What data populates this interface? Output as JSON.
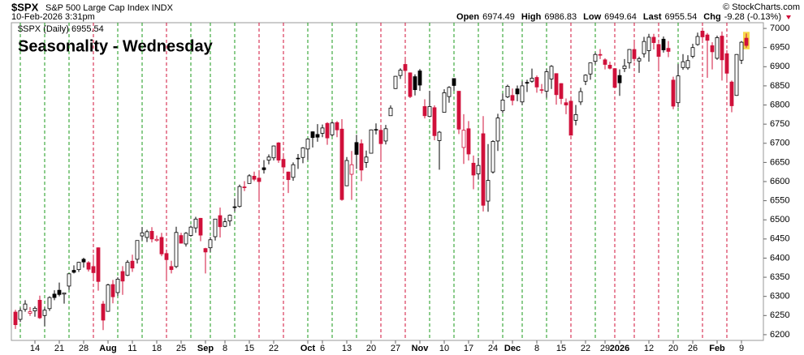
{
  "chart_data": {
    "type": "candlestick",
    "title": "Seasonality - Wednesday",
    "title_color": "#1010e0",
    "symbol": "$SPX",
    "symbol_name": "S&P 500 Large Cap Index INDX",
    "datetime": "10-Feb-2026 3:31pm",
    "quote": [
      {
        "label": "Open",
        "value": "6974.49"
      },
      {
        "label": "High",
        "value": "6986.83"
      },
      {
        "label": "Low",
        "value": "6949.64"
      },
      {
        "label": "Last",
        "value": "6955.54"
      },
      {
        "label": "Chg",
        "value": "-9.28 (-0.13%)"
      }
    ],
    "credit": "© StockCharts.com",
    "legend_text": "$SPX (Daily) 6955.54",
    "up_color": "#000000",
    "down_color": "#d0103a",
    "line_up_color": "#1a9a1a",
    "line_down_color": "#d0103a",
    "last_bar_highlight": "#f7d84a",
    "ylim": [
      6185,
      7015
    ],
    "yticks": [
      6200,
      6250,
      6300,
      6350,
      6400,
      6450,
      6500,
      6550,
      6600,
      6650,
      6700,
      6750,
      6800,
      6850,
      6900,
      6950,
      7000
    ],
    "categories": [
      null,
      null,
      null,
      null,
      "14",
      null,
      null,
      null,
      null,
      "21",
      null,
      null,
      null,
      null,
      "28",
      null,
      null,
      null,
      null,
      "Aug",
      null,
      null,
      null,
      null,
      "11",
      null,
      null,
      null,
      null,
      "18",
      null,
      null,
      null,
      null,
      "25",
      null,
      null,
      null,
      null,
      "Sep",
      null,
      null,
      null,
      "8",
      null,
      null,
      null,
      null,
      "15",
      null,
      null,
      null,
      null,
      "22",
      null,
      null,
      null,
      null,
      null,
      null,
      "Oct",
      null,
      null,
      "6",
      null,
      null,
      null,
      null,
      "13",
      null,
      null,
      null,
      null,
      "20",
      null,
      null,
      null,
      null,
      "27",
      null,
      null,
      null,
      null,
      "Nov",
      null,
      null,
      null,
      null,
      "10",
      null,
      null,
      null,
      null,
      "17",
      null,
      null,
      null,
      null,
      "24",
      null,
      null,
      null,
      "Dec",
      null,
      null,
      null,
      null,
      "8",
      null,
      null,
      null,
      null,
      "15",
      null,
      null,
      null,
      null,
      "22",
      null,
      null,
      null,
      "29",
      null,
      null,
      "2026",
      null,
      null,
      null,
      null,
      null,
      "12",
      null,
      null,
      null,
      null,
      "20",
      null,
      null,
      null,
      "26",
      null,
      null,
      null,
      null,
      "Feb",
      null,
      null,
      null,
      null,
      "9",
      null
    ],
    "vertical_line_days": [
      1,
      6,
      11,
      16,
      21,
      26,
      31,
      36,
      40,
      45,
      50,
      55,
      60,
      65,
      70,
      75,
      80,
      85,
      90,
      95,
      100,
      104,
      109,
      114,
      119,
      123,
      127,
      132,
      136,
      141,
      146
    ],
    "open": [
      6259,
      6240,
      6266,
      6256,
      6262,
      6290,
      6250,
      6268,
      6306,
      6316,
      6306,
      6327,
      6368,
      6370,
      6397,
      6388,
      6378,
      6427,
      6280,
      6261,
      6331,
      6310,
      6365,
      6355,
      6392,
      6397,
      6458,
      6454,
      6470,
      6446,
      6454,
      6412,
      6378,
      6378,
      6459,
      6437,
      6459,
      6479,
      6504,
      6425,
      6427,
      6456,
      6511,
      6483,
      6497,
      6534,
      6535,
      6586,
      6595,
      6614,
      6609,
      6636,
      6656,
      6662,
      6701,
      6658,
      6625,
      6611,
      6661,
      6663,
      6685,
      6730,
      6723,
      6726,
      6752,
      6722,
      6754,
      6737,
      6589,
      6619,
      6702,
      6699,
      6650,
      6674,
      6736,
      6734,
      6706,
      6772,
      6843,
      6877,
      6906,
      6884,
      6874,
      6889,
      6796,
      6770,
      6793,
      6707,
      6781,
      6822,
      6869,
      6836,
      6689,
      6738,
      6648,
      6620,
      6725,
      6549,
      6625,
      6706,
      6785,
      6821,
      6825,
      6842,
      6808,
      6859,
      6862,
      6872,
      6840,
      6836,
      6868,
      6882,
      6856,
      6806,
      6810,
      6760,
      6808,
      6862,
      6881,
      6914,
      6932,
      6918,
      6904,
      6895,
      6877,
      6895,
      6910,
      6945,
      6915,
      6934,
      6942,
      6977,
      6958,
      6972,
      6948,
      6865,
      6806,
      6898,
      6897,
      6927,
      6958,
      6993,
      6983,
      6955,
      6922,
      6980,
      6934,
      6860,
      6825,
      6917,
      6974.49
    ],
    "high": [
      6265,
      6270,
      6290,
      6272,
      6274,
      6302,
      6271,
      6300,
      6316,
      6336,
      6310,
      6360,
      6381,
      6390,
      6401,
      6392,
      6409,
      6428,
      6288,
      6333,
      6343,
      6350,
      6379,
      6395,
      6409,
      6446,
      6481,
      6474,
      6481,
      6459,
      6466,
      6414,
      6393,
      6482,
      6466,
      6468,
      6485,
      6508,
      6505,
      6427,
      6455,
      6502,
      6532,
      6505,
      6514,
      6556,
      6592,
      6601,
      6619,
      6626,
      6624,
      6656,
      6671,
      6694,
      6703,
      6666,
      6626,
      6650,
      6672,
      6690,
      6713,
      6731,
      6750,
      6749,
      6755,
      6757,
      6758,
      6763,
      6664,
      6680,
      6722,
      6710,
      6681,
      6736,
      6752,
      6740,
      6748,
      6799,
      6876,
      6896,
      6920,
      6885,
      6880,
      6894,
      6815,
      6837,
      6799,
      6732,
      6841,
      6849,
      6870,
      6836,
      6776,
      6758,
      6668,
      6662,
      6771,
      6698,
      6708,
      6777,
      6830,
      6853,
      6843,
      6851,
      6862,
      6866,
      6895,
      6877,
      6855,
      6894,
      6904,
      6883,
      6857,
      6817,
      6818,
      6800,
      6845,
      6880,
      6910,
      6937,
      6946,
      6922,
      6913,
      6896,
      6893,
      6920,
      6946,
      6965,
      6926,
      6978,
      6986,
      6986,
      6961,
      6979,
      6967,
      6874,
      6907,
      6933,
      6930,
      6960,
      6989,
      7002,
      6988,
      6964,
      6981,
      6992,
      6943,
      6864,
      6933,
      6967,
      6986.83
    ],
    "low": [
      6215,
      6233,
      6260,
      6249,
      6247,
      6241,
      6222,
      6262,
      6290,
      6300,
      6281,
      6317,
      6360,
      6364,
      6375,
      6365,
      6346,
      6315,
      6212,
      6260,
      6282,
      6301,
      6304,
      6353,
      6364,
      6386,
      6446,
      6442,
      6441,
      6443,
      6405,
      6343,
      6360,
      6374,
      6438,
      6430,
      6456,
      6466,
      6444,
      6360,
      6416,
      6446,
      6454,
      6481,
      6484,
      6521,
      6532,
      6575,
      6595,
      6601,
      6552,
      6621,
      6645,
      6655,
      6649,
      6622,
      6570,
      6602,
      6633,
      6648,
      6656,
      6689,
      6704,
      6716,
      6696,
      6718,
      6716,
      6550,
      6588,
      6552,
      6633,
      6601,
      6636,
      6674,
      6723,
      6654,
      6697,
      6773,
      6842,
      6868,
      6856,
      6818,
      6825,
      6837,
      6765,
      6768,
      6708,
      6631,
      6781,
      6806,
      6837,
      6724,
      6646,
      6655,
      6580,
      6605,
      6522,
      6521,
      6621,
      6680,
      6779,
      6818,
      6799,
      6810,
      6800,
      6834,
      6858,
      6832,
      6830,
      6819,
      6842,
      6801,
      6802,
      6776,
      6720,
      6747,
      6800,
      6852,
      6866,
      6906,
      6920,
      6893,
      6893,
      6844,
      6824,
      6886,
      6895,
      6914,
      6884,
      6924,
      6913,
      6945,
      6893,
      6937,
      6925,
      6789,
      6794,
      6892,
      6892,
      6922,
      6955,
      6970,
      6871,
      6893,
      6918,
      6864,
      6858,
      6781,
      6824,
      6907,
      6949.64
    ],
    "close": [
      6226,
      6263,
      6280,
      6260,
      6269,
      6244,
      6264,
      6297,
      6297,
      6305,
      6309,
      6359,
      6363,
      6389,
      6390,
      6371,
      6362,
      6339,
      6238,
      6330,
      6299,
      6345,
      6340,
      6389,
      6374,
      6446,
      6466,
      6469,
      6450,
      6449,
      6411,
      6396,
      6370,
      6467,
      6439,
      6465,
      6481,
      6502,
      6460,
      6416,
      6448,
      6502,
      6482,
      6495,
      6512,
      6532,
      6587,
      6584,
      6615,
      6606,
      6600,
      6631,
      6664,
      6693,
      6656,
      6638,
      6605,
      6644,
      6661,
      6688,
      6711,
      6715,
      6716,
      6740,
      6714,
      6753,
      6735,
      6553,
      6655,
      6644,
      6671,
      6630,
      6664,
      6735,
      6736,
      6699,
      6738,
      6792,
      6875,
      6891,
      6890,
      6822,
      6840,
      6852,
      6772,
      6796,
      6720,
      6729,
      6832,
      6846,
      6851,
      6737,
      6734,
      6672,
      6617,
      6642,
      6538,
      6603,
      6705,
      6766,
      6813,
      6849,
      6812,
      6829,
      6850,
      6857,
      6870,
      6847,
      6840,
      6887,
      6901,
      6827,
      6817,
      6800,
      6721,
      6775,
      6835,
      6878,
      6910,
      6932,
      6930,
      6906,
      6896,
      6846,
      6858,
      6902,
      6945,
      6921,
      6921,
      6966,
      6977,
      6963,
      6927,
      6944,
      6940,
      6797,
      6876,
      6913,
      6916,
      6950,
      6979,
      6978,
      6969,
      6939,
      6976,
      6918,
      6883,
      6798,
      6932,
      6964,
      6955.54
    ]
  }
}
